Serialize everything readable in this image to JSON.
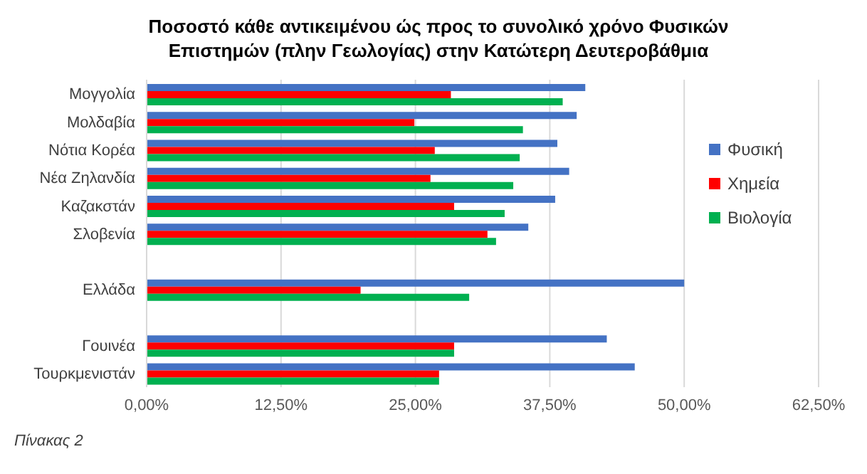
{
  "chart_data": {
    "type": "bar",
    "orientation": "horizontal",
    "title": "Ποσοστό κάθε αντικειμένου ώς προς το συνολικό χρόνο Φυσικών Επιστημών (πλην Γεωλογίας) στην Κατώτερη Δευτεροβάθμια",
    "categories": [
      "Μογγολία",
      "Μολδαβία",
      "Νότια Κορέα",
      "Νέα Ζηλανδία",
      "Καζακστάν",
      "Σλοβενία",
      null,
      "Ελλάδα",
      null,
      "Γουινέα",
      "Τουρκμενιστάν"
    ],
    "series": [
      {
        "name": "Φυσική",
        "color": "#4472c4",
        "values": [
          40.8,
          40.0,
          38.2,
          39.3,
          38.0,
          35.5,
          null,
          50.0,
          null,
          42.8,
          45.4
        ]
      },
      {
        "name": "Χημεία",
        "color": "#ff0000",
        "values": [
          28.3,
          24.9,
          26.8,
          26.4,
          28.6,
          31.7,
          null,
          19.9,
          null,
          28.6,
          27.2
        ]
      },
      {
        "name": "Βιολογία",
        "color": "#00b050",
        "values": [
          38.7,
          35.0,
          34.7,
          34.1,
          33.3,
          32.5,
          null,
          30.0,
          null,
          28.6,
          27.2
        ]
      }
    ],
    "xlim": [
      0,
      62.5
    ],
    "xticks": [
      {
        "value": 0,
        "label": "0,00%"
      },
      {
        "value": 12.5,
        "label": "12,50%"
      },
      {
        "value": 25,
        "label": "25,00%"
      },
      {
        "value": 37.5,
        "label": "37,50%"
      },
      {
        "value": 50,
        "label": "50,00%"
      },
      {
        "value": 62.5,
        "label": "62,50%"
      }
    ],
    "grid": "x",
    "legend": "right",
    "annotations": [
      "Πίνακας 2"
    ]
  }
}
